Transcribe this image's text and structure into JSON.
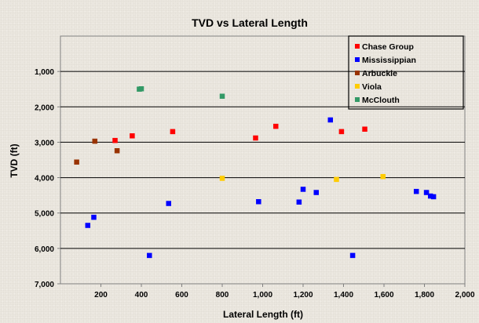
{
  "chart_data": {
    "type": "scatter",
    "title": "TVD vs Lateral Length",
    "xlabel": "Lateral Length (ft)",
    "ylabel": "TVD (ft)",
    "xlim": [
      0,
      2000
    ],
    "ylim": [
      0,
      7000
    ],
    "y_inverted": true,
    "x_ticks": [
      "200",
      "400",
      "600",
      "800",
      "1,000",
      "1,200",
      "1,400",
      "1,600",
      "1,800",
      "2,000"
    ],
    "y_ticks": [
      "1,000",
      "2,000",
      "3,000",
      "4,000",
      "5,000",
      "6,000",
      "7,000"
    ],
    "grid": "horizontal",
    "legend_position": "top-right",
    "series": [
      {
        "name": "Chase Group",
        "color": "#ff0000",
        "points": [
          [
            270,
            2950
          ],
          [
            355,
            2820
          ],
          [
            555,
            2700
          ],
          [
            965,
            2880
          ],
          [
            1065,
            2550
          ],
          [
            1390,
            2700
          ],
          [
            1505,
            2630
          ]
        ]
      },
      {
        "name": "Mississippian",
        "color": "#0000ff",
        "points": [
          [
            135,
            5350
          ],
          [
            165,
            5120
          ],
          [
            440,
            6200
          ],
          [
            535,
            4730
          ],
          [
            980,
            4680
          ],
          [
            1180,
            4690
          ],
          [
            1200,
            4330
          ],
          [
            1265,
            4420
          ],
          [
            1335,
            2370
          ],
          [
            1445,
            6200
          ],
          [
            1760,
            4390
          ],
          [
            1810,
            4420
          ],
          [
            1830,
            4520
          ],
          [
            1845,
            4540
          ]
        ]
      },
      {
        "name": "Arbuckle",
        "color": "#993300",
        "points": [
          [
            80,
            3560
          ],
          [
            170,
            2970
          ],
          [
            280,
            3240
          ]
        ]
      },
      {
        "name": "Viola",
        "color": "#ffcc00",
        "points": [
          [
            800,
            4020
          ],
          [
            1365,
            4050
          ],
          [
            1595,
            3970
          ]
        ]
      },
      {
        "name": "McClouth",
        "color": "#339966",
        "points": [
          [
            390,
            1500
          ],
          [
            400,
            1490
          ],
          [
            800,
            1700
          ]
        ]
      }
    ]
  }
}
